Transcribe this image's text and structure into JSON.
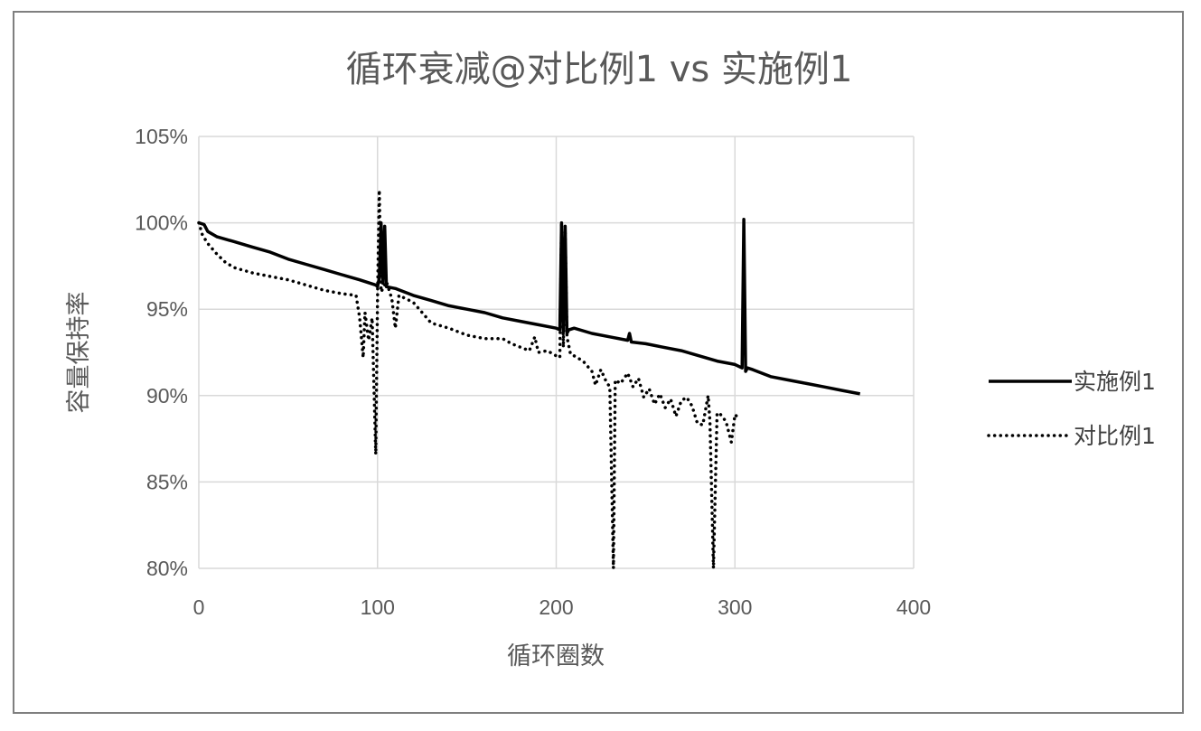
{
  "chart_data": {
    "type": "line",
    "title": "循环衰减@对比例1 vs 实施例1",
    "xlabel": "循环圈数",
    "ylabel": "容量保持率",
    "xlim": [
      0,
      400
    ],
    "ylim": [
      80,
      105
    ],
    "x_ticks": [
      "0",
      "100",
      "200",
      "300",
      "400"
    ],
    "y_ticks": [
      "80%",
      "85%",
      "90%",
      "95%",
      "100%",
      "105%"
    ],
    "grid": true,
    "legend_position": "right",
    "series": [
      {
        "name": "实施例1",
        "style": "solid",
        "color": "#000000",
        "points": [
          [
            0,
            100.0
          ],
          [
            3,
            99.9
          ],
          [
            5,
            99.5
          ],
          [
            10,
            99.2
          ],
          [
            20,
            98.9
          ],
          [
            30,
            98.6
          ],
          [
            40,
            98.3
          ],
          [
            50,
            97.9
          ],
          [
            60,
            97.6
          ],
          [
            70,
            97.3
          ],
          [
            80,
            97.0
          ],
          [
            90,
            96.7
          ],
          [
            99,
            96.4
          ],
          [
            100,
            96.3
          ],
          [
            101,
            96.8
          ],
          [
            102,
            100.0
          ],
          [
            103,
            96.5
          ],
          [
            104,
            99.8
          ],
          [
            105,
            96.3
          ],
          [
            110,
            96.2
          ],
          [
            120,
            95.8
          ],
          [
            130,
            95.5
          ],
          [
            140,
            95.2
          ],
          [
            150,
            95.0
          ],
          [
            160,
            94.8
          ],
          [
            170,
            94.5
          ],
          [
            180,
            94.3
          ],
          [
            190,
            94.1
          ],
          [
            200,
            93.9
          ],
          [
            202,
            93.8
          ],
          [
            203,
            100.0
          ],
          [
            204,
            93.7
          ],
          [
            205,
            99.8
          ],
          [
            206,
            93.6
          ],
          [
            207,
            93.8
          ],
          [
            210,
            93.9
          ],
          [
            220,
            93.6
          ],
          [
            230,
            93.4
          ],
          [
            240,
            93.2
          ],
          [
            241,
            93.6
          ],
          [
            242,
            93.1
          ],
          [
            250,
            93.0
          ],
          [
            260,
            92.8
          ],
          [
            270,
            92.6
          ],
          [
            280,
            92.3
          ],
          [
            290,
            92.0
          ],
          [
            300,
            91.8
          ],
          [
            304,
            91.6
          ],
          [
            305,
            100.2
          ],
          [
            306,
            91.4
          ],
          [
            307,
            91.6
          ],
          [
            310,
            91.5
          ],
          [
            320,
            91.1
          ],
          [
            330,
            90.9
          ],
          [
            340,
            90.7
          ],
          [
            350,
            90.5
          ],
          [
            360,
            90.3
          ],
          [
            370,
            90.1
          ]
        ]
      },
      {
        "name": "对比例1",
        "style": "dotted",
        "color": "#000000",
        "points": [
          [
            0,
            100.0
          ],
          [
            2,
            99.3
          ],
          [
            5,
            98.8
          ],
          [
            10,
            98.2
          ],
          [
            15,
            97.7
          ],
          [
            20,
            97.4
          ],
          [
            30,
            97.1
          ],
          [
            40,
            96.9
          ],
          [
            50,
            96.7
          ],
          [
            60,
            96.4
          ],
          [
            70,
            96.1
          ],
          [
            80,
            95.9
          ],
          [
            88,
            95.8
          ],
          [
            90,
            94.5
          ],
          [
            92,
            92.2
          ],
          [
            93,
            94.8
          ],
          [
            95,
            93.2
          ],
          [
            97,
            94.5
          ],
          [
            99,
            86.6
          ],
          [
            100,
            95.8
          ],
          [
            101,
            101.9
          ],
          [
            102,
            96.0
          ],
          [
            105,
            96.6
          ],
          [
            108,
            95.6
          ],
          [
            110,
            93.9
          ],
          [
            112,
            95.8
          ],
          [
            120,
            95.4
          ],
          [
            125,
            94.8
          ],
          [
            130,
            94.2
          ],
          [
            140,
            93.9
          ],
          [
            150,
            93.5
          ],
          [
            160,
            93.3
          ],
          [
            170,
            93.3
          ],
          [
            175,
            93.0
          ],
          [
            180,
            92.8
          ],
          [
            185,
            92.6
          ],
          [
            188,
            93.4
          ],
          [
            190,
            92.5
          ],
          [
            195,
            92.6
          ],
          [
            200,
            92.3
          ],
          [
            202,
            92.2
          ],
          [
            203,
            100.0
          ],
          [
            204,
            92.8
          ],
          [
            205,
            99.5
          ],
          [
            206,
            93.4
          ],
          [
            208,
            92.4
          ],
          [
            210,
            92.3
          ],
          [
            215,
            92.0
          ],
          [
            220,
            91.4
          ],
          [
            222,
            90.6
          ],
          [
            225,
            91.5
          ],
          [
            228,
            90.8
          ],
          [
            230,
            90.5
          ],
          [
            232,
            80.0
          ],
          [
            233,
            90.9
          ],
          [
            236,
            90.7
          ],
          [
            240,
            91.3
          ],
          [
            243,
            90.5
          ],
          [
            246,
            91.0
          ],
          [
            249,
            89.9
          ],
          [
            252,
            90.4
          ],
          [
            255,
            89.5
          ],
          [
            258,
            90.1
          ],
          [
            261,
            89.3
          ],
          [
            264,
            89.8
          ],
          [
            267,
            88.8
          ],
          [
            270,
            89.7
          ],
          [
            273,
            89.9
          ],
          [
            276,
            89.4
          ],
          [
            279,
            88.4
          ],
          [
            282,
            88.3
          ],
          [
            285,
            90.0
          ],
          [
            286,
            88.5
          ],
          [
            288,
            80.0
          ],
          [
            290,
            89.0
          ],
          [
            292,
            88.9
          ],
          [
            295,
            88.5
          ],
          [
            298,
            87.3
          ],
          [
            300,
            88.9
          ],
          [
            302,
            88.7
          ]
        ]
      }
    ]
  }
}
